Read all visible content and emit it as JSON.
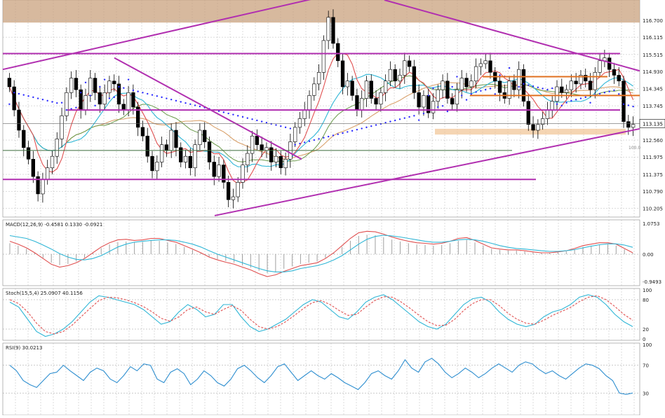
{
  "chart_data": [
    {
      "type": "candlestick",
      "panel": "price",
      "title": "",
      "ylim": [
        109.9,
        117.4
      ],
      "y_ticks": [
        "116.700",
        "116.115",
        "115.515",
        "114.930",
        "114.345",
        "113.745",
        "113.135",
        "112.560",
        "111.975",
        "111.375",
        "110.790",
        "110.205"
      ],
      "y_tick_values": [
        116.7,
        116.115,
        115.515,
        114.93,
        114.345,
        113.745,
        113.135,
        112.56,
        111.975,
        111.375,
        110.79,
        110.205
      ],
      "current_price": "113.135",
      "current_price_value": 113.135,
      "level_label": "100.0",
      "level_label_value": 112.2,
      "bar_count": 140,
      "colors": {
        "up": "#ffffff",
        "down": "#000000",
        "wick": "#000000",
        "sar": "#2c2cff",
        "ma_fast": "#e05050",
        "ma_mid": "#2fb6d6",
        "ma_slow": "#d9a06a",
        "ma_green": "#6a9a4a",
        "trend": "#b12fb0",
        "resist_band": "#c9a27e",
        "support": "#e07020"
      },
      "closes": [
        114.4,
        113.6,
        112.9,
        112.3,
        111.9,
        111.3,
        110.7,
        111.2,
        111.6,
        112.0,
        112.6,
        113.4,
        114.2,
        114.7,
        114.3,
        113.6,
        114.1,
        114.7,
        114.2,
        113.8,
        114.2,
        114.6,
        114.5,
        113.8,
        113.6,
        114.2,
        113.7,
        113.0,
        112.7,
        112.0,
        111.5,
        111.8,
        112.4,
        112.2,
        112.9,
        112.3,
        111.8,
        112.0,
        111.6,
        112.4,
        112.9,
        112.5,
        111.8,
        111.3,
        111.7,
        111.1,
        110.5,
        110.6,
        111.1,
        111.7,
        112.1,
        112.7,
        112.4,
        112.2,
        112.3,
        111.8,
        112.0,
        111.6,
        111.9,
        112.5,
        113.0,
        113.3,
        113.6,
        114.1,
        114.5,
        114.9,
        116.0,
        116.8,
        115.9,
        115.3,
        114.4,
        114.6,
        114.1,
        113.6,
        114.0,
        114.6,
        114.0,
        113.8,
        114.2,
        114.6,
        115.0,
        114.6,
        114.8,
        115.3,
        115.1,
        114.2,
        113.7,
        114.1,
        113.5,
        113.9,
        114.3,
        114.6,
        114.0,
        113.8,
        114.3,
        114.7,
        114.4,
        114.6,
        115.1,
        115.2,
        115.3,
        114.9,
        114.6,
        114.2,
        114.0,
        114.6,
        114.3,
        115.0,
        113.9,
        113.1,
        112.9,
        113.1,
        113.3,
        113.6,
        113.9,
        114.4,
        114.2,
        114.3,
        114.6,
        114.5,
        114.8,
        114.6,
        114.3,
        114.9,
        115.3,
        115.4,
        115.0,
        114.8,
        114.6,
        113.2,
        113.0,
        113.1
      ]
    },
    {
      "type": "line",
      "panel": "macd",
      "label": "MACD(12,26,9) -0.4581 0.1330 -0.0921",
      "ylim": [
        -1.05,
        1.15
      ],
      "y_ticks": [
        "1.0753",
        "0.00",
        "-0.9493"
      ],
      "y_tick_values": [
        1.0753,
        0.0,
        -0.9493
      ],
      "series": [
        {
          "name": "MACD",
          "color": "#e05050",
          "values": [
            0.45,
            0.35,
            0.22,
            0.05,
            -0.15,
            -0.35,
            -0.45,
            -0.4,
            -0.3,
            -0.15,
            0.05,
            0.25,
            0.4,
            0.5,
            0.52,
            0.48,
            0.5,
            0.55,
            0.55,
            0.48,
            0.42,
            0.3,
            0.18,
            0.05,
            -0.1,
            -0.2,
            -0.28,
            -0.35,
            -0.45,
            -0.55,
            -0.68,
            -0.78,
            -0.72,
            -0.6,
            -0.5,
            -0.4,
            -0.35,
            -0.3,
            -0.15,
            0.05,
            0.3,
            0.55,
            0.75,
            0.8,
            0.78,
            0.7,
            0.6,
            0.52,
            0.45,
            0.4,
            0.38,
            0.35,
            0.38,
            0.45,
            0.55,
            0.58,
            0.48,
            0.35,
            0.22,
            0.18,
            0.15,
            0.15,
            0.12,
            0.08,
            0.05,
            0.05,
            0.08,
            0.12,
            0.2,
            0.3,
            0.35,
            0.4,
            0.4,
            0.35,
            0.2,
            0.05
          ]
        },
        {
          "name": "Signal",
          "color": "#2fb6d6",
          "values": [
            0.65,
            0.6,
            0.55,
            0.45,
            0.32,
            0.18,
            0.02,
            -0.1,
            -0.18,
            -0.2,
            -0.15,
            -0.05,
            0.1,
            0.25,
            0.35,
            0.42,
            0.45,
            0.48,
            0.5,
            0.5,
            0.48,
            0.42,
            0.35,
            0.25,
            0.12,
            0.0,
            -0.1,
            -0.2,
            -0.3,
            -0.4,
            -0.5,
            -0.58,
            -0.62,
            -0.62,
            -0.58,
            -0.5,
            -0.45,
            -0.4,
            -0.32,
            -0.2,
            -0.05,
            0.15,
            0.35,
            0.52,
            0.62,
            0.66,
            0.64,
            0.6,
            0.55,
            0.5,
            0.45,
            0.42,
            0.42,
            0.45,
            0.5,
            0.52,
            0.5,
            0.45,
            0.38,
            0.3,
            0.24,
            0.2,
            0.18,
            0.15,
            0.12,
            0.1,
            0.1,
            0.12,
            0.16,
            0.22,
            0.28,
            0.33,
            0.36,
            0.36,
            0.32,
            0.24
          ]
        }
      ]
    },
    {
      "type": "line",
      "panel": "stochastic",
      "label": "Stoch(15,5,4) 25.0907 40.1156",
      "ylim": [
        0,
        100
      ],
      "y_ticks": [
        "100",
        "80",
        "20",
        "0"
      ],
      "y_tick_values": [
        100,
        80,
        20,
        0
      ],
      "series": [
        {
          "name": "%K",
          "color": "#2fb6d6",
          "values": [
            75,
            65,
            40,
            15,
            5,
            10,
            20,
            35,
            55,
            75,
            88,
            85,
            80,
            75,
            70,
            60,
            45,
            30,
            35,
            55,
            70,
            60,
            45,
            50,
            70,
            70,
            45,
            25,
            15,
            20,
            30,
            40,
            55,
            70,
            80,
            75,
            60,
            45,
            40,
            55,
            75,
            85,
            90,
            80,
            65,
            50,
            35,
            25,
            20,
            30,
            50,
            70,
            82,
            85,
            75,
            55,
            40,
            30,
            25,
            30,
            45,
            55,
            60,
            70,
            85,
            90,
            85,
            70,
            50,
            35,
            25
          ]
        },
        {
          "name": "%D",
          "color": "#e05050",
          "values": [
            80,
            72,
            55,
            32,
            15,
            10,
            15,
            28,
            45,
            62,
            78,
            85,
            84,
            80,
            74,
            66,
            55,
            42,
            36,
            45,
            60,
            65,
            55,
            50,
            60,
            68,
            58,
            40,
            25,
            20,
            25,
            35,
            48,
            62,
            74,
            78,
            70,
            58,
            48,
            50,
            65,
            78,
            86,
            85,
            75,
            62,
            48,
            35,
            27,
            28,
            40,
            58,
            72,
            80,
            80,
            68,
            52,
            40,
            32,
            30,
            38,
            48,
            56,
            64,
            76,
            85,
            88,
            80,
            66,
            50,
            38
          ]
        }
      ]
    },
    {
      "type": "line",
      "panel": "rsi",
      "label": "RSI(9) 30.0213",
      "ylim": [
        0,
        100
      ],
      "y_ticks": [
        "100",
        "70",
        "30"
      ],
      "y_tick_values": [
        100,
        70,
        30
      ],
      "series": [
        {
          "name": "RSI",
          "color": "#2f8fd0",
          "values": [
            70,
            62,
            48,
            42,
            38,
            48,
            58,
            60,
            70,
            62,
            55,
            48,
            60,
            66,
            62,
            50,
            45,
            55,
            68,
            62,
            72,
            70,
            50,
            45,
            60,
            65,
            58,
            42,
            50,
            62,
            55,
            45,
            40,
            50,
            65,
            70,
            62,
            52,
            45,
            55,
            68,
            72,
            60,
            48,
            55,
            62,
            55,
            50,
            58,
            52,
            45,
            40,
            35,
            45,
            58,
            62,
            55,
            50,
            62,
            78,
            66,
            60,
            75,
            80,
            72,
            60,
            52,
            58,
            66,
            60,
            52,
            58,
            66,
            72,
            66,
            60,
            70,
            75,
            72,
            64,
            58,
            62,
            55,
            50,
            58,
            66,
            72,
            70,
            65,
            55,
            48,
            30,
            28,
            30
          ]
        }
      ]
    }
  ]
}
